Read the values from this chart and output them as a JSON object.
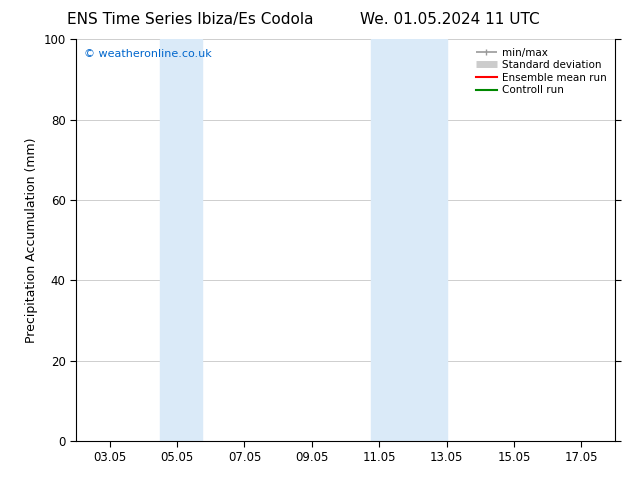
{
  "title_left": "ENS Time Series Ibiza/Es Codola",
  "title_right": "We. 01.05.2024 11 UTC",
  "ylabel": "Precipitation Accumulation (mm)",
  "ylim": [
    0,
    100
  ],
  "yticks": [
    0,
    20,
    40,
    60,
    80,
    100
  ],
  "xtick_labels": [
    "03.05",
    "05.05",
    "07.05",
    "09.05",
    "11.05",
    "13.05",
    "15.05",
    "17.05"
  ],
  "xtick_positions": [
    3,
    5,
    7,
    9,
    11,
    13,
    15,
    17
  ],
  "xmin": 2.0,
  "xmax": 18.0,
  "watermark": "© weatheronline.co.uk",
  "watermark_color": "#0066cc",
  "shaded_regions": [
    {
      "xmin": 4.5,
      "xmax": 5.75,
      "color": "#daeaf8"
    },
    {
      "xmin": 10.75,
      "xmax": 13.0,
      "color": "#daeaf8"
    }
  ],
  "legend_items": [
    {
      "label": "min/max",
      "color": "#999999",
      "lw": 1.2,
      "style": "solid",
      "type": "minmax"
    },
    {
      "label": "Standard deviation",
      "color": "#cccccc",
      "lw": 5,
      "style": "solid",
      "type": "std"
    },
    {
      "label": "Ensemble mean run",
      "color": "#ff0000",
      "lw": 1.5,
      "style": "solid",
      "type": "line"
    },
    {
      "label": "Controll run",
      "color": "#008800",
      "lw": 1.5,
      "style": "solid",
      "type": "line"
    }
  ],
  "background_color": "#ffffff",
  "grid_color": "#bbbbbb",
  "tick_label_fontsize": 8.5,
  "axis_label_fontsize": 9,
  "title_fontsize": 11,
  "legend_fontsize": 7.5
}
